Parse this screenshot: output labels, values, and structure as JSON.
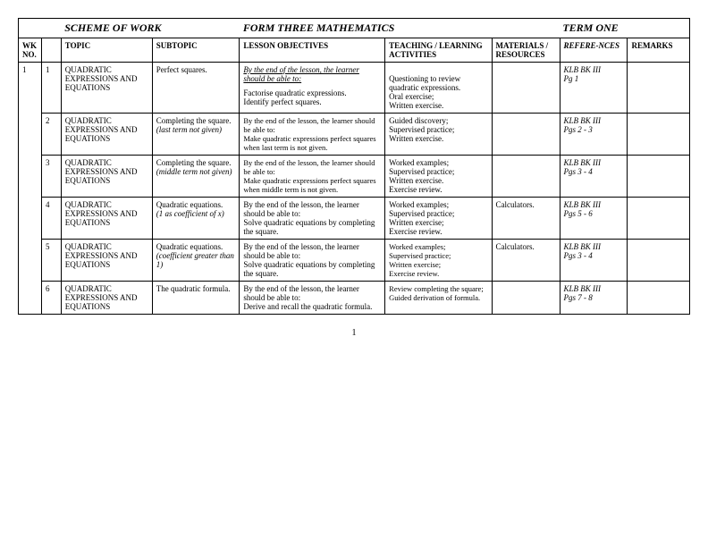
{
  "title": {
    "scheme": "SCHEME  OF  WORK",
    "form": "FORM  THREE MATHEMATICS",
    "term": "TERM  ONE"
  },
  "headers": {
    "wk": "WK NO.",
    "topic": "TOPIC",
    "subtopic": "SUBTOPIC",
    "objectives": "LESSON   OBJECTIVES",
    "activities": "TEACHING / LEARNING ACTIVITIES",
    "materials": "MATERIALS / RESOURCES",
    "references": "REFERE-NCES",
    "remarks": "REMARKS"
  },
  "wk": "1",
  "objectives_lead": "By the end of the lesson, the learner should be able to:",
  "rows": [
    {
      "lsn": "1",
      "topic": "QUADRATIC EXPRESSIONS AND EQUATIONS",
      "subtopic_main": "Perfect squares.",
      "subtopic_note": "",
      "obj_extra": "Factorise quadratic expressions.\nIdentify perfect squares.",
      "activities": "Questioning to review quadratic expressions.\nOral exercise;\nWritten exercise.",
      "materials": "",
      "ref": "KLB  BK III\nPg 1",
      "obj_lead_underline": true
    },
    {
      "lsn": "2",
      "topic": "QUADRATIC EXPRESSIONS AND EQUATIONS",
      "subtopic_main": "Completing the square.",
      "subtopic_note": "(last term not given)",
      "obj_extra": "Make quadratic expressions perfect squares when last term is not given.",
      "activities": "Guided discovery;\nSupervised practice;\nWritten exercise.",
      "materials": "",
      "ref": "KLB  BK III\nPgs 2 - 3",
      "obj_lead_underline": false,
      "small": true
    },
    {
      "lsn": "3",
      "topic": "QUADRATIC EXPRESSIONS AND EQUATIONS",
      "subtopic_main": "Completing the square.",
      "subtopic_note": "(middle term not given)",
      "obj_extra": "Make quadratic expressions perfect squares when middle term is not given.",
      "activities": "Worked examples;\nSupervised practice;\nWritten exercise.\nExercise review.",
      "materials": "",
      "ref": "KLB  BK III\nPgs 3 - 4",
      "obj_lead_underline": false,
      "small": true
    },
    {
      "lsn": "4",
      "topic": "QUADRATIC EXPRESSIONS AND EQUATIONS",
      "subtopic_main": "Quadratic equations.",
      "subtopic_note": "(1 as coefficient of x)",
      "obj_extra": "Solve quadratic equations by completing the square.",
      "activities": "Worked examples;\nSupervised practice;\nWritten exercise;\nExercise review.",
      "materials": "Calculators.",
      "ref": "KLB  BK III\nPgs 5 - 6",
      "obj_lead_underline": false
    },
    {
      "lsn": "5",
      "topic": "QUADRATIC EXPRESSIONS AND EQUATIONS",
      "subtopic_main": "Quadratic equations.",
      "subtopic_note": "(coefficient greater than 1)",
      "obj_extra": "Solve quadratic equations by completing the square.",
      "activities": "Worked examples;\nSupervised practice;\nWritten exercise;\nExercise review.",
      "materials": "Calculators.",
      "ref": "KLB  BK III\nPgs 3 - 4",
      "obj_lead_underline": false,
      "small_act": true
    },
    {
      "lsn": "6",
      "topic": "QUADRATIC EXPRESSIONS AND EQUATIONS",
      "subtopic_main": "The quadratic formula.",
      "subtopic_note": "",
      "obj_extra": "Derive and recall the quadratic formula.",
      "activities": "Review completing the square;\nGuided derivation of formula.",
      "materials": "",
      "ref": "KLB  BK III\nPgs 7 - 8",
      "obj_lead_underline": false,
      "small_act": true
    }
  ],
  "page_number": "1",
  "col_widths": {
    "wk": "24px",
    "lsn": "20px",
    "topic": "94px",
    "subtopic": "90px",
    "objectives": "150px",
    "activities": "110px",
    "materials": "70px",
    "references": "70px",
    "remarks": "64px"
  }
}
